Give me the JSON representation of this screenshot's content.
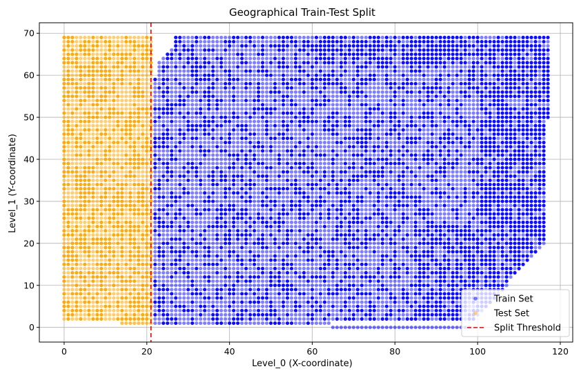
{
  "chart_data": {
    "type": "scatter",
    "title": "Geographical Train-Test Split",
    "xlabel": "Level_0 (X-coordinate)",
    "ylabel": "Level_1 (Y-coordinate)",
    "xlim": [
      -6,
      123
    ],
    "ylim": [
      -3.5,
      72.5
    ],
    "xticks": [
      0,
      20,
      40,
      60,
      80,
      100,
      120
    ],
    "yticks": [
      0,
      10,
      20,
      30,
      40,
      50,
      60,
      70
    ],
    "grid": true,
    "legend_position": "lower-right",
    "threshold": {
      "name": "Split Threshold",
      "x": 21,
      "color": "#e60000",
      "style": "dashed"
    },
    "series": [
      {
        "name": "Train Set",
        "color": "#0000ff",
        "alpha": 0.5,
        "x_range": [
          22,
          117
        ],
        "y_range": [
          1,
          69
        ],
        "grid_step": 1,
        "note_boundary": "upper edge starts ~y=59 at x=22, y=69 from x~27; right edge at x=117 down to y~50, tapering to x~107 at y~10 and x~98 at y~1"
      },
      {
        "name": "Test Set",
        "color": "#ffa500",
        "alpha": 0.5,
        "x_range": [
          0,
          21
        ],
        "y_range": [
          1,
          69
        ],
        "grid_step": 1
      }
    ]
  }
}
